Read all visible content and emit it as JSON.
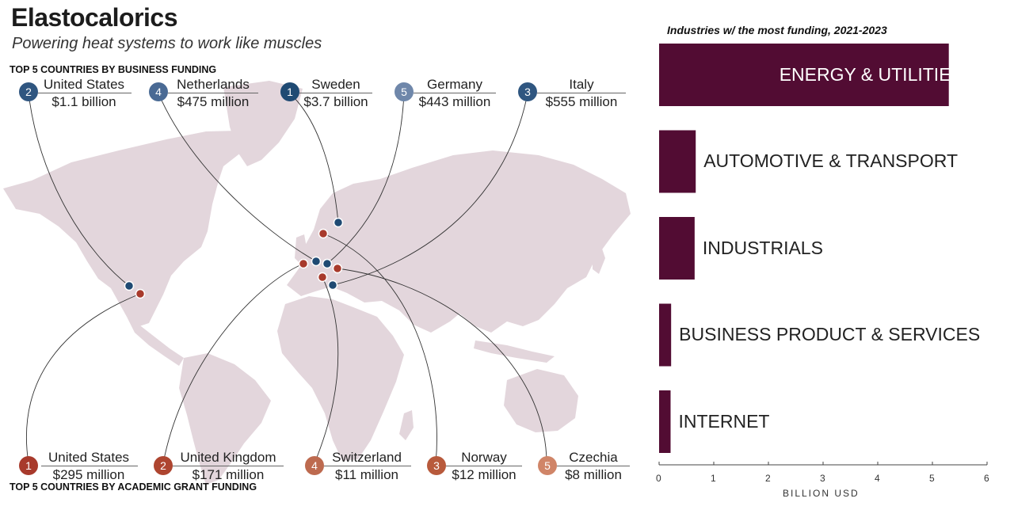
{
  "title": "Elastocalorics",
  "subtitle": "Powering heat systems to work like muscles",
  "business_section_title": "TOP 5 COUNTRIES BY BUSINESS FUNDING",
  "academic_section_title": "TOP 5 COUNTRIES BY ACADEMIC GRANT FUNDING",
  "colors": {
    "business": "#1f4a73",
    "academic": "#a83a2c",
    "business_lighter": [
      "#1f4a73",
      "#2f5680",
      "#4a6a94",
      "#5f7a9f",
      "#6f87aa"
    ],
    "academic_lighter": [
      "#a83a2c",
      "#ae4530",
      "#bd6a4f",
      "#b85a3c",
      "#d08568"
    ],
    "land": "#e3d6dc",
    "bar": "#520c33"
  },
  "business_funding": [
    {
      "rank": "2",
      "country": "United States",
      "amount": "$1.1 billion"
    },
    {
      "rank": "4",
      "country": "Netherlands",
      "amount": "$475 million"
    },
    {
      "rank": "1",
      "country": "Sweden",
      "amount": "$3.7 billion"
    },
    {
      "rank": "5",
      "country": "Germany",
      "amount": "$443 million"
    },
    {
      "rank": "3",
      "country": "Italy",
      "amount": "$555 million"
    }
  ],
  "academic_funding": [
    {
      "rank": "1",
      "country": "United States",
      "amount": "$295 million"
    },
    {
      "rank": "2",
      "country": "United Kingdom",
      "amount": "$171 million"
    },
    {
      "rank": "4",
      "country": "Switzerland",
      "amount": "$11 million"
    },
    {
      "rank": "3",
      "country": "Norway",
      "amount": "$12 million"
    },
    {
      "rank": "5",
      "country": "Czechia",
      "amount": "$8 million"
    }
  ],
  "chart_data": {
    "type": "bar",
    "orientation": "horizontal",
    "title": "Industries w/ the most funding, 2021-2023",
    "xlabel": "BILLION USD",
    "ylabel": "",
    "categories": [
      "ENERGY & UTILITIES",
      "AUTOMOTIVE & TRANSPORT",
      "INDUSTRIALS",
      "BUSINESS PRODUCT & SERVICES",
      "INTERNET"
    ],
    "values": [
      5.3,
      0.67,
      0.65,
      0.22,
      0.21
    ],
    "xlim": [
      0,
      6
    ],
    "xticks": [
      "0",
      "1",
      "2",
      "3",
      "4",
      "5",
      "6"
    ],
    "grid": false
  }
}
